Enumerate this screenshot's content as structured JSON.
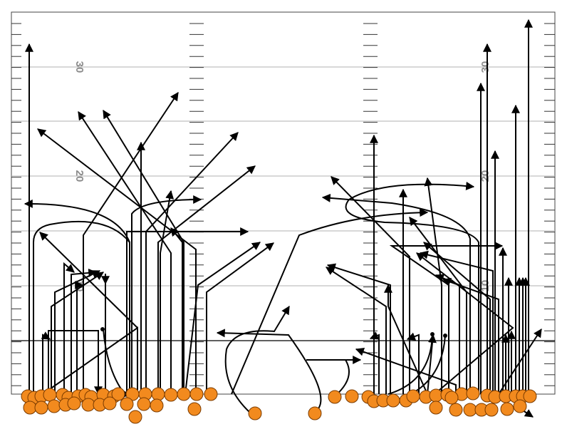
{
  "field": {
    "yard_numbers": [
      {
        "text": "30",
        "side": "left"
      },
      {
        "text": "20",
        "side": "left"
      },
      {
        "text": "10",
        "side": "left"
      },
      {
        "text": "30",
        "side": "right"
      },
      {
        "text": "20",
        "side": "right"
      },
      {
        "text": "10",
        "side": "right"
      }
    ]
  },
  "colors": {
    "player_fill": "#f28a1e",
    "route_line": "#000000",
    "yard_line": "#b0b0b0",
    "yard_number": "#8c8c8c"
  },
  "diagram": {
    "type": "football-route-tree",
    "legend": "none"
  }
}
